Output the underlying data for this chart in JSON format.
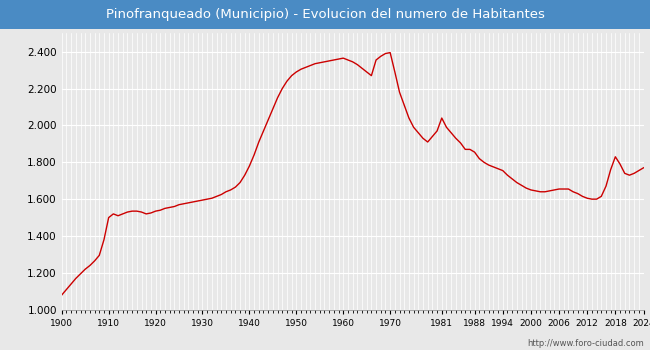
{
  "title": "Pinofranqueado (Municipio) - Evolucion del numero de Habitantes",
  "title_bg": "#4a8bc4",
  "title_color": "white",
  "footer_text": "http://www.foro-ciudad.com",
  "line_color": "#cc0000",
  "bg_color": "#e8e8e8",
  "plot_bg": "#e8e8e8",
  "grid_color": "white",
  "ylim": [
    1000,
    2500
  ],
  "yticks": [
    1000,
    1200,
    1400,
    1600,
    1800,
    2000,
    2200,
    2400
  ],
  "xticks": [
    1900,
    1910,
    1920,
    1930,
    1940,
    1950,
    1960,
    1970,
    1981,
    1988,
    1994,
    2000,
    2006,
    2012,
    2018,
    2024
  ],
  "years": [
    1900,
    1901,
    1902,
    1903,
    1904,
    1905,
    1906,
    1907,
    1908,
    1909,
    1910,
    1911,
    1912,
    1913,
    1914,
    1915,
    1916,
    1917,
    1918,
    1919,
    1920,
    1921,
    1922,
    1923,
    1924,
    1925,
    1926,
    1927,
    1928,
    1929,
    1930,
    1931,
    1932,
    1933,
    1934,
    1935,
    1936,
    1937,
    1938,
    1939,
    1940,
    1941,
    1942,
    1943,
    1944,
    1945,
    1946,
    1947,
    1948,
    1949,
    1950,
    1951,
    1952,
    1953,
    1954,
    1955,
    1956,
    1957,
    1958,
    1959,
    1960,
    1961,
    1962,
    1963,
    1964,
    1965,
    1966,
    1967,
    1968,
    1969,
    1970,
    1971,
    1972,
    1973,
    1974,
    1975,
    1976,
    1977,
    1978,
    1979,
    1980,
    1981,
    1982,
    1983,
    1984,
    1985,
    1986,
    1987,
    1988,
    1989,
    1990,
    1991,
    1992,
    1993,
    1994,
    1995,
    1996,
    1997,
    1998,
    1999,
    2000,
    2001,
    2002,
    2003,
    2004,
    2005,
    2006,
    2007,
    2008,
    2009,
    2010,
    2011,
    2012,
    2013,
    2014,
    2015,
    2016,
    2017,
    2018,
    2019,
    2020,
    2021,
    2022,
    2023,
    2024
  ],
  "population": [
    1080,
    1110,
    1140,
    1170,
    1195,
    1220,
    1240,
    1265,
    1295,
    1380,
    1500,
    1520,
    1510,
    1520,
    1530,
    1535,
    1535,
    1530,
    1520,
    1525,
    1535,
    1540,
    1550,
    1555,
    1560,
    1570,
    1575,
    1580,
    1585,
    1590,
    1595,
    1600,
    1605,
    1615,
    1625,
    1640,
    1650,
    1665,
    1690,
    1730,
    1780,
    1840,
    1910,
    1970,
    2030,
    2090,
    2150,
    2200,
    2240,
    2270,
    2290,
    2305,
    2315,
    2325,
    2335,
    2340,
    2345,
    2350,
    2355,
    2360,
    2365,
    2355,
    2345,
    2330,
    2310,
    2290,
    2270,
    2355,
    2375,
    2390,
    2395,
    2290,
    2180,
    2110,
    2040,
    1990,
    1960,
    1930,
    1910,
    1940,
    1970,
    2040,
    1990,
    1960,
    1930,
    1905,
    1870,
    1870,
    1855,
    1820,
    1800,
    1785,
    1775,
    1765,
    1755,
    1730,
    1710,
    1690,
    1675,
    1660,
    1650,
    1645,
    1640,
    1640,
    1645,
    1650,
    1655,
    1655,
    1655,
    1640,
    1630,
    1615,
    1605,
    1600,
    1600,
    1615,
    1670,
    1760,
    1830,
    1790,
    1740,
    1730,
    1740,
    1755,
    1770
  ]
}
